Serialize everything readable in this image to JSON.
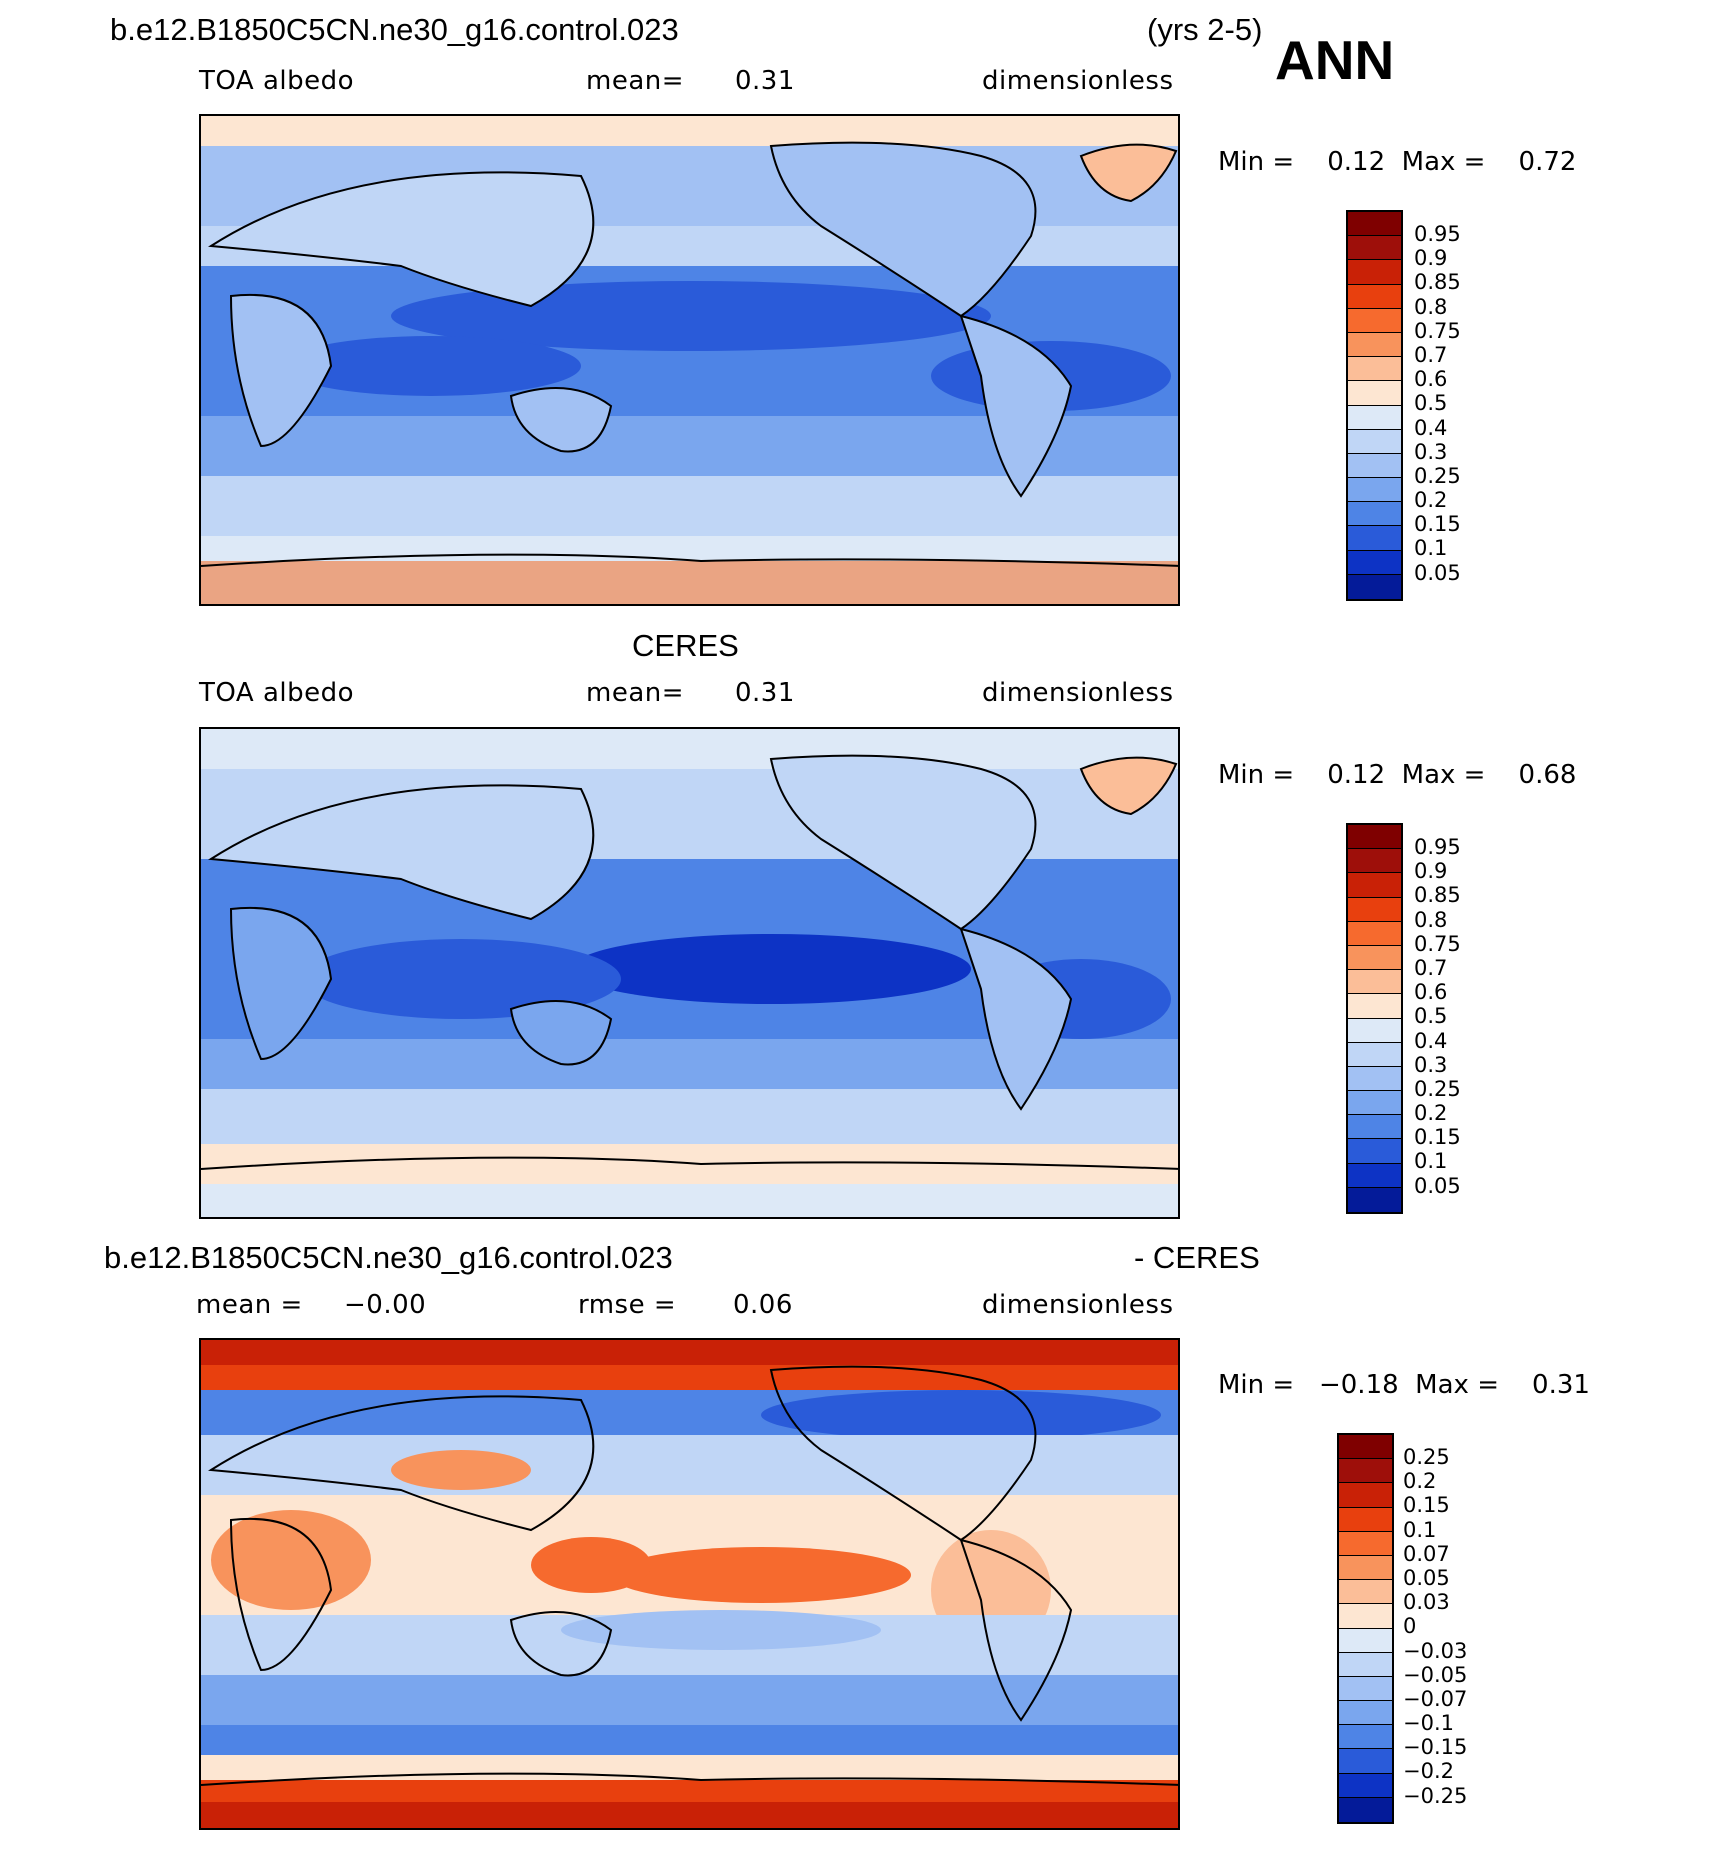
{
  "header": {
    "case_name": "b.e12.B1850C5CN.ne30_g16.control.023",
    "years": "(yrs 2-5)",
    "season": "ANN"
  },
  "panels": [
    {
      "title": "",
      "variable": "TOA albedo",
      "stat_label": "mean=",
      "stat_value": "0.31",
      "units": "dimensionless",
      "min_max": "Min =    0.12  Max =    0.72",
      "colorbar": {
        "levels": [
          "0.95",
          "0.9",
          "0.85",
          "0.8",
          "0.75",
          "0.7",
          "0.6",
          "0.5",
          "0.4",
          "0.3",
          "0.25",
          "0.2",
          "0.15",
          "0.1",
          "0.05"
        ],
        "colors": [
          "#7f0000",
          "#9e0f0a",
          "#c92106",
          "#e8400e",
          "#f66a2e",
          "#f8935c",
          "#fbbe98",
          "#fde6d2",
          "#dde9f7",
          "#c0d6f6",
          "#a2c1f3",
          "#7aa6ee",
          "#4e84e6",
          "#2a5bd9",
          "#0d33c5",
          "#041b99",
          "#000a6b"
        ]
      }
    },
    {
      "title": "CERES",
      "variable": "TOA albedo",
      "stat_label": "mean=",
      "stat_value": "0.31",
      "units": "dimensionless",
      "min_max": "Min =    0.12  Max =    0.68",
      "colorbar": {
        "levels": [
          "0.95",
          "0.9",
          "0.85",
          "0.8",
          "0.75",
          "0.7",
          "0.6",
          "0.5",
          "0.4",
          "0.3",
          "0.25",
          "0.2",
          "0.15",
          "0.1",
          "0.05"
        ],
        "colors": [
          "#7f0000",
          "#9e0f0a",
          "#c92106",
          "#e8400e",
          "#f66a2e",
          "#f8935c",
          "#fbbe98",
          "#fde6d2",
          "#dde9f7",
          "#c0d6f6",
          "#a2c1f3",
          "#7aa6ee",
          "#4e84e6",
          "#2a5bd9",
          "#0d33c5",
          "#041b99",
          "#000a6b"
        ]
      }
    },
    {
      "title_left": "b.e12.B1850C5CN.ne30_g16.control.023",
      "title_right": "- CERES",
      "mean_label": "mean =",
      "mean_value": "−0.00",
      "rmse_label": "rmse =",
      "rmse_value": "0.06",
      "units": "dimensionless",
      "min_max": "Min =   −0.18  Max =    0.31",
      "colorbar": {
        "levels": [
          "0.25",
          "0.2",
          "0.15",
          "0.1",
          "0.07",
          "0.05",
          "0.03",
          "0",
          "−0.03",
          "−0.05",
          "−0.07",
          "−0.1",
          "−0.15",
          "−0.2",
          "−0.25"
        ],
        "colors": [
          "#7f0000",
          "#9e0f0a",
          "#c92106",
          "#e8400e",
          "#f66a2e",
          "#f8935c",
          "#fbbe98",
          "#fde6d2",
          "#dde9f7",
          "#c0d6f6",
          "#a2c1f3",
          "#7aa6ee",
          "#4e84e6",
          "#2a5bd9",
          "#0d33c5",
          "#041b99",
          "#000a6b"
        ]
      }
    }
  ]
}
